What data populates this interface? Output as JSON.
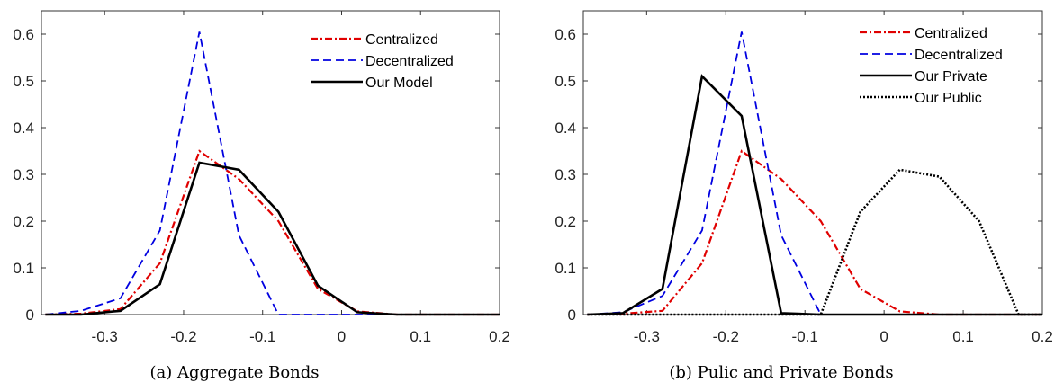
{
  "chart_data": [
    {
      "type": "line",
      "title": "",
      "caption": "(a) Aggregate Bonds",
      "xlabel": "",
      "ylabel": "",
      "xlim": [
        -0.38,
        0.2
      ],
      "ylim": [
        0,
        0.65
      ],
      "xticks": [
        "-0.3",
        "-0.2",
        "-0.1",
        "0",
        "0.1",
        "0.2"
      ],
      "xtick_values": [
        -0.3,
        -0.2,
        -0.1,
        0,
        0.1,
        0.2
      ],
      "yticks": [
        "0",
        "0.1",
        "0.2",
        "0.3",
        "0.4",
        "0.5",
        "0.6"
      ],
      "ytick_values": [
        0,
        0.1,
        0.2,
        0.3,
        0.4,
        0.5,
        0.6
      ],
      "legend_position": "top-right",
      "series": [
        {
          "name": "Centralized",
          "color": "#e00000",
          "dash": "dashdot",
          "x": [
            -0.375,
            -0.33,
            -0.28,
            -0.23,
            -0.18,
            -0.13,
            -0.08,
            -0.03,
            0.02,
            0.07,
            0.2
          ],
          "y": [
            0,
            0.002,
            0.012,
            0.11,
            0.35,
            0.29,
            0.2,
            0.055,
            0.007,
            0.0,
            0.0
          ]
        },
        {
          "name": "Decentralized",
          "color": "#0000e0",
          "dash": "dashed",
          "x": [
            -0.375,
            -0.33,
            -0.28,
            -0.23,
            -0.18,
            -0.13,
            -0.08,
            -0.03,
            0.02,
            0.07,
            0.2
          ],
          "y": [
            0,
            0.008,
            0.035,
            0.18,
            0.605,
            0.17,
            0.0,
            0.0,
            0.0,
            0.0,
            0.0
          ]
        },
        {
          "name": "Our Model",
          "color": "#000000",
          "dash": "solid",
          "x": [
            -0.375,
            -0.33,
            -0.28,
            -0.23,
            -0.18,
            -0.13,
            -0.08,
            -0.03,
            0.02,
            0.07,
            0.2
          ],
          "y": [
            0,
            0.0,
            0.008,
            0.065,
            0.325,
            0.31,
            0.22,
            0.062,
            0.005,
            0.0,
            0.0
          ]
        }
      ]
    },
    {
      "type": "line",
      "title": "",
      "caption": "(b) Pulic and Private Bonds",
      "xlabel": "",
      "ylabel": "",
      "xlim": [
        -0.38,
        0.2
      ],
      "ylim": [
        0,
        0.65
      ],
      "xticks": [
        "-0.3",
        "-0.2",
        "-0.1",
        "0",
        "0.1",
        "0.2"
      ],
      "xtick_values": [
        -0.3,
        -0.2,
        -0.1,
        0,
        0.1,
        0.2
      ],
      "yticks": [
        "0",
        "0.1",
        "0.2",
        "0.3",
        "0.4",
        "0.5",
        "0.6"
      ],
      "ytick_values": [
        0,
        0.1,
        0.2,
        0.3,
        0.4,
        0.5,
        0.6
      ],
      "legend_position": "top-right",
      "series": [
        {
          "name": "Centralized",
          "color": "#e00000",
          "dash": "dashdot",
          "x": [
            -0.375,
            -0.33,
            -0.28,
            -0.23,
            -0.18,
            -0.13,
            -0.08,
            -0.03,
            0.02,
            0.07,
            0.2
          ],
          "y": [
            0,
            0.002,
            0.008,
            0.11,
            0.35,
            0.29,
            0.2,
            0.055,
            0.007,
            0.0,
            0.0
          ]
        },
        {
          "name": "Decentralized",
          "color": "#0000e0",
          "dash": "dashed",
          "x": [
            -0.375,
            -0.33,
            -0.28,
            -0.23,
            -0.18,
            -0.13,
            -0.08,
            -0.03,
            0.02,
            0.07,
            0.2
          ],
          "y": [
            0,
            0.005,
            0.04,
            0.18,
            0.605,
            0.17,
            0.0,
            0.0,
            0.0,
            0.0,
            0.0
          ]
        },
        {
          "name": "Our Private",
          "color": "#000000",
          "dash": "solid",
          "x": [
            -0.375,
            -0.33,
            -0.28,
            -0.23,
            -0.18,
            -0.13,
            -0.08,
            -0.03,
            0.02,
            0.07,
            0.2
          ],
          "y": [
            0,
            0.003,
            0.055,
            0.51,
            0.425,
            0.003,
            0.0,
            0.0,
            0.0,
            0.0,
            0.0
          ]
        },
        {
          "name": "Our Public",
          "color": "#000000",
          "dash": "dotted",
          "x": [
            -0.375,
            -0.33,
            -0.28,
            -0.23,
            -0.18,
            -0.13,
            -0.08,
            -0.03,
            0.02,
            0.07,
            0.12,
            0.17,
            0.2
          ],
          "y": [
            0,
            0,
            0,
            0,
            0,
            0,
            0.0,
            0.22,
            0.31,
            0.295,
            0.2,
            0.0,
            0.0
          ]
        }
      ]
    }
  ]
}
